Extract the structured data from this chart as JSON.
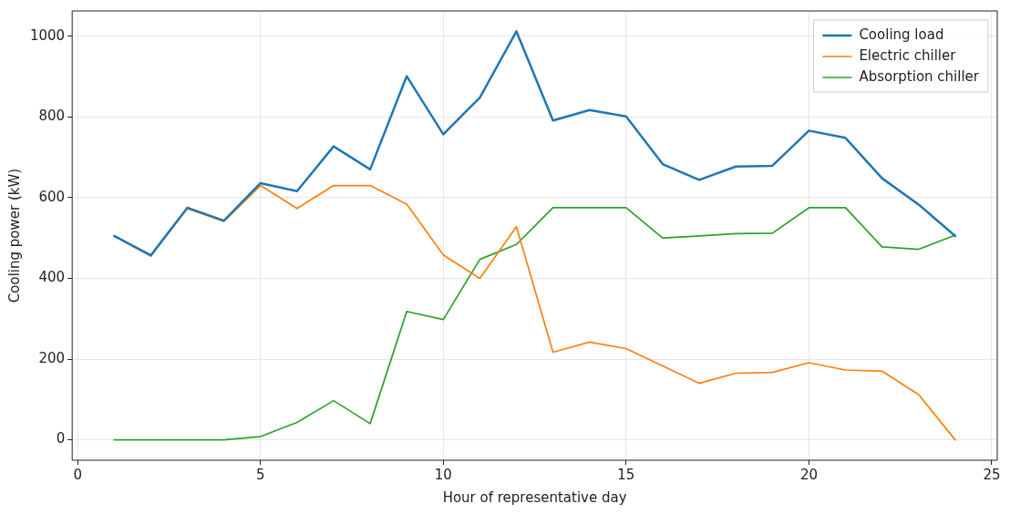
{
  "chart_data": {
    "type": "line",
    "xlabel": "Hour of representative day",
    "ylabel": "Cooling power (kW)",
    "x": [
      1,
      2,
      3,
      4,
      5,
      6,
      7,
      8,
      9,
      10,
      11,
      12,
      13,
      14,
      15,
      16,
      17,
      18,
      19,
      20,
      21,
      22,
      23,
      24
    ],
    "series": [
      {
        "name": "Cooling load",
        "color": "#1f77b4",
        "values": [
          505,
          457,
          575,
          543,
          636,
          616,
          727,
          670,
          901,
          757,
          848,
          1012,
          791,
          817,
          801,
          683,
          644,
          677,
          679,
          766,
          748,
          648,
          583,
          505
        ]
      },
      {
        "name": "Electric chiller",
        "color": "#ff7f0e",
        "values": [
          505,
          455,
          573,
          541,
          630,
          573,
          630,
          630,
          584,
          458,
          400,
          528,
          217,
          242,
          226,
          183,
          140,
          165,
          167,
          191,
          173,
          170,
          112,
          0
        ]
      },
      {
        "name": "Absorption chiller",
        "color": "#2ca02c",
        "values": [
          0,
          0,
          0,
          0,
          8,
          43,
          97,
          40,
          318,
          298,
          447,
          484,
          575,
          575,
          575,
          500,
          505,
          511,
          512,
          575,
          575,
          478,
          472,
          507
        ]
      }
    ],
    "xlim": [
      -0.15,
      25.15
    ],
    "ylim": [
      -50.6,
      1062.6
    ],
    "xticks": [
      0,
      5,
      10,
      15,
      20,
      25
    ],
    "yticks": [
      0,
      200,
      400,
      600,
      800,
      1000
    ],
    "grid": true,
    "legend": "top right",
    "marker": "none",
    "line_style": "solid"
  }
}
